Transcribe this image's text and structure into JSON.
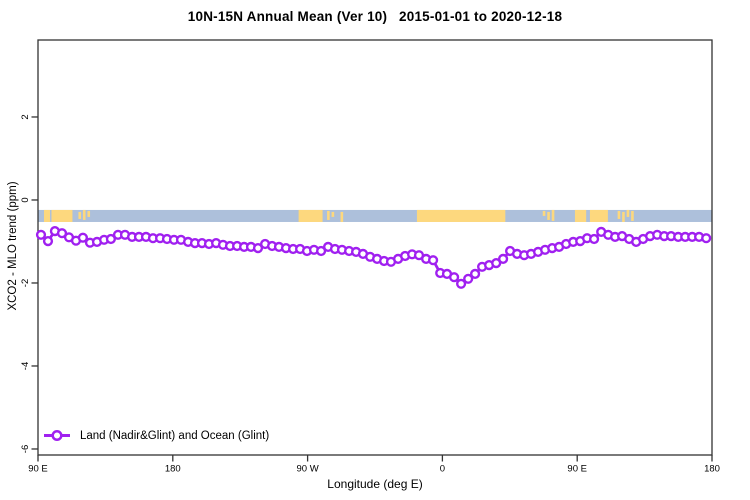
{
  "title": "10N-15N Annual Mean (Ver 10)   2015-01-01 to 2020-12-18",
  "colors": {
    "series": "#A020F0",
    "marker_fill": "#ffffff",
    "ocean_band": "#ADC0DB",
    "land_band": "#FDD87E",
    "frame": "#333333",
    "text": "#000000"
  },
  "chart_data": {
    "type": "line",
    "title": "10N-15N Annual Mean (Ver 10)   2015-01-01 to 2020-12-18",
    "xlabel": "Longitude (deg E)",
    "ylabel": "XCO2 - MLO trend (ppm)",
    "xlim": [
      90,
      540
    ],
    "ylim": [
      -6.145,
      3.855
    ],
    "grid": false,
    "x_ticks": [
      {
        "value": 90,
        "label": "90 E"
      },
      {
        "value": 180,
        "label": "180"
      },
      {
        "value": 270,
        "label": "90 W"
      },
      {
        "value": 360,
        "label": "0"
      },
      {
        "value": 450,
        "label": "90 E"
      },
      {
        "value": 540,
        "label": "180"
      }
    ],
    "y_ticks": [
      {
        "value": 2,
        "label": "2"
      },
      {
        "value": 0,
        "label": "0"
      },
      {
        "value": -2,
        "label": "-2"
      },
      {
        "value": -4,
        "label": "-4"
      },
      {
        "value": -6,
        "label": "-6"
      }
    ],
    "legend": [
      {
        "label": "Land (Nadir&Glint) and Ocean (Glint)",
        "color": "#A020F0",
        "marker": "open-circle-line",
        "position": "bottom-left"
      }
    ],
    "surface_band": {
      "description": "land-ocean surface strip for 10N-15N",
      "value_range": [
        -0.24,
        -0.53
      ],
      "ocean_color": "#ADC0DB",
      "land_color": "#FDD87E",
      "land_segments": [
        {
          "lon": [
            94,
            98
          ],
          "style": "solid"
        },
        {
          "lon": [
            99,
            113
          ],
          "style": "solid"
        },
        {
          "lon": [
            117,
            126
          ],
          "style": "speckled"
        },
        {
          "lon": [
            264,
            280
          ],
          "style": "solid"
        },
        {
          "lon": [
            283,
            288
          ],
          "style": "speckled"
        },
        {
          "lon": [
            292,
            295
          ],
          "style": "speckled"
        },
        {
          "lon": [
            343,
            402
          ],
          "style": "solid"
        },
        {
          "lon": [
            427,
            436
          ],
          "style": "speckled"
        },
        {
          "lon": [
            448.5,
            456
          ],
          "style": "solid"
        },
        {
          "lon": [
            458.5,
            470.5
          ],
          "style": "solid"
        },
        {
          "lon": [
            477,
            488.5
          ],
          "style": "speckled"
        }
      ]
    },
    "series": [
      {
        "name": "Land (Nadir&Glint) and Ocean (Glint)",
        "color": "#A020F0",
        "marker": "open-circle",
        "points": [
          [
            92.0,
            -0.84
          ],
          [
            96.7,
            -0.99
          ],
          [
            101.3,
            -0.75
          ],
          [
            106.0,
            -0.8
          ],
          [
            110.7,
            -0.9
          ],
          [
            115.4,
            -0.98
          ],
          [
            120.0,
            -0.91
          ],
          [
            124.7,
            -1.03
          ],
          [
            129.4,
            -1.01
          ],
          [
            134.1,
            -0.96
          ],
          [
            138.7,
            -0.94
          ],
          [
            143.4,
            -0.84
          ],
          [
            148.1,
            -0.84
          ],
          [
            152.8,
            -0.89
          ],
          [
            157.4,
            -0.89
          ],
          [
            162.1,
            -0.89
          ],
          [
            166.8,
            -0.92
          ],
          [
            171.5,
            -0.92
          ],
          [
            176.1,
            -0.94
          ],
          [
            180.8,
            -0.96
          ],
          [
            185.5,
            -0.96
          ],
          [
            190.2,
            -1.01
          ],
          [
            194.8,
            -1.04
          ],
          [
            199.5,
            -1.04
          ],
          [
            204.2,
            -1.06
          ],
          [
            208.9,
            -1.04
          ],
          [
            213.5,
            -1.08
          ],
          [
            218.2,
            -1.11
          ],
          [
            222.9,
            -1.11
          ],
          [
            227.6,
            -1.13
          ],
          [
            232.2,
            -1.13
          ],
          [
            236.9,
            -1.16
          ],
          [
            241.6,
            -1.06
          ],
          [
            246.3,
            -1.11
          ],
          [
            250.9,
            -1.13
          ],
          [
            255.6,
            -1.16
          ],
          [
            260.3,
            -1.18
          ],
          [
            265.0,
            -1.18
          ],
          [
            269.6,
            -1.23
          ],
          [
            274.3,
            -1.2
          ],
          [
            279.0,
            -1.23
          ],
          [
            283.7,
            -1.13
          ],
          [
            288.3,
            -1.18
          ],
          [
            293.0,
            -1.2
          ],
          [
            297.7,
            -1.23
          ],
          [
            302.4,
            -1.25
          ],
          [
            307.0,
            -1.3
          ],
          [
            311.7,
            -1.37
          ],
          [
            316.4,
            -1.42
          ],
          [
            321.1,
            -1.47
          ],
          [
            325.7,
            -1.49
          ],
          [
            330.4,
            -1.42
          ],
          [
            335.1,
            -1.35
          ],
          [
            339.8,
            -1.31
          ],
          [
            344.4,
            -1.33
          ],
          [
            349.1,
            -1.42
          ],
          [
            353.8,
            -1.45
          ],
          [
            358.5,
            -1.76
          ],
          [
            363.1,
            -1.78
          ],
          [
            367.8,
            -1.86
          ],
          [
            372.5,
            -2.02
          ],
          [
            377.2,
            -1.9
          ],
          [
            381.8,
            -1.78
          ],
          [
            386.5,
            -1.61
          ],
          [
            391.2,
            -1.57
          ],
          [
            395.9,
            -1.52
          ],
          [
            400.5,
            -1.42
          ],
          [
            405.2,
            -1.23
          ],
          [
            409.9,
            -1.3
          ],
          [
            414.6,
            -1.33
          ],
          [
            419.2,
            -1.3
          ],
          [
            423.9,
            -1.25
          ],
          [
            428.6,
            -1.2
          ],
          [
            433.3,
            -1.16
          ],
          [
            437.9,
            -1.13
          ],
          [
            442.6,
            -1.06
          ],
          [
            447.3,
            -1.01
          ],
          [
            452.0,
            -0.99
          ],
          [
            456.6,
            -0.92
          ],
          [
            461.3,
            -0.94
          ],
          [
            466.0,
            -0.77
          ],
          [
            470.7,
            -0.84
          ],
          [
            475.3,
            -0.89
          ],
          [
            480.0,
            -0.87
          ],
          [
            484.7,
            -0.94
          ],
          [
            489.4,
            -1.01
          ],
          [
            494.0,
            -0.94
          ],
          [
            498.7,
            -0.87
          ],
          [
            503.4,
            -0.84
          ],
          [
            508.1,
            -0.87
          ],
          [
            512.7,
            -0.87
          ],
          [
            517.4,
            -0.89
          ],
          [
            522.1,
            -0.89
          ],
          [
            526.8,
            -0.89
          ],
          [
            531.4,
            -0.89
          ],
          [
            536.1,
            -0.92
          ]
        ]
      }
    ]
  }
}
